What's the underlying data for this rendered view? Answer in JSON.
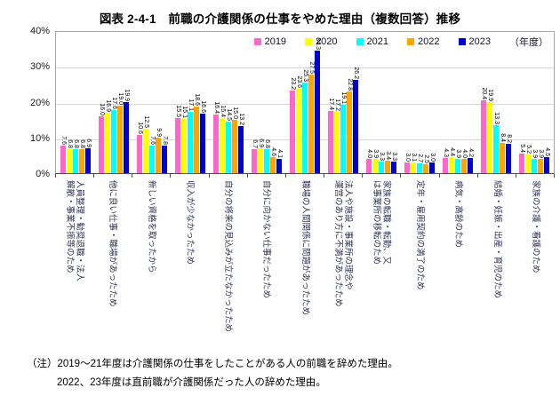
{
  "title": "図表 2-4-1　前職の介護関係の仕事をやめた理由（複数回答）推移",
  "y_axis": {
    "ticks": [
      "40%",
      "30%",
      "20%",
      "10%",
      "0%"
    ]
  },
  "legend": {
    "unit_label": "（年度）"
  },
  "chart_data": {
    "type": "bar",
    "title": "図表 2-4-1　前職の介護関係の仕事をやめた理由（複数回答）推移",
    "ylabel": "%",
    "ylim": [
      0,
      40
    ],
    "y_tick_interval": 10,
    "grid": true,
    "legend_position": "top-inside",
    "categories": [
      "人員整理・勧奨退職・法人\n解散・事業不振等のため",
      "他に良い仕事・職場があったため",
      "新しい資格を取ったから",
      "収入が少なかったため",
      "自分の将来の見込みが立たなかったため",
      "自分に向かない仕事だったため",
      "職場の人間関係に問題があったため",
      "法人や施設・事業所の理念や\n運営のあり方に不満があったため",
      "家族の転職・転勤、又\nは事業所の移転のため",
      "定年・雇用契約の満了のため",
      "病気・高齢のため",
      "結婚・妊娠・出産・育児のため",
      "家族の介護・看護のため"
    ],
    "series": [
      {
        "name": "2019",
        "color": "#FF66CC",
        "values": [
          7.6,
          16.0,
          10.6,
          15.5,
          16.4,
          6.7,
          23.2,
          17.4,
          4.0,
          3.0,
          4.3,
          20.4,
          5.4
        ]
      },
      {
        "name": "2020",
        "color": "#FFFF00",
        "values": [
          6.8,
          16.9,
          12.5,
          15.1,
          15.4,
          6.9,
          23.6,
          17.2,
          3.9,
          3.1,
          4.4,
          19.9,
          5.2
        ]
      },
      {
        "name": "2021",
        "color": "#00FFFF",
        "values": [
          6.8,
          17.6,
          7.6,
          17.1,
          14.5,
          6.8,
          25.3,
          19.1,
          3.3,
          2.7,
          3.9,
          13.3,
          3.9
        ]
      },
      {
        "name": "2022",
        "color": "#FFA500",
        "values": [
          6.8,
          19.0,
          9.9,
          18.6,
          15.0,
          4.6,
          27.5,
          22.8,
          3.4,
          2.5,
          4.0,
          8.4,
          3.9
        ]
      },
      {
        "name": "2023",
        "color": "#0000CD",
        "values": [
          6.9,
          19.9,
          7.8,
          16.6,
          13.2,
          4.1,
          34.3,
          26.2,
          3.3,
          3.0,
          4.2,
          8.2,
          4.5
        ]
      }
    ]
  },
  "notes": {
    "line1": "（注）2019～21年度は介護関係の仕事をしたことがある人の前職を辞めた理由。",
    "line2": "2022、23年度は直前職が介護関係だった人の辞めた理由。"
  }
}
